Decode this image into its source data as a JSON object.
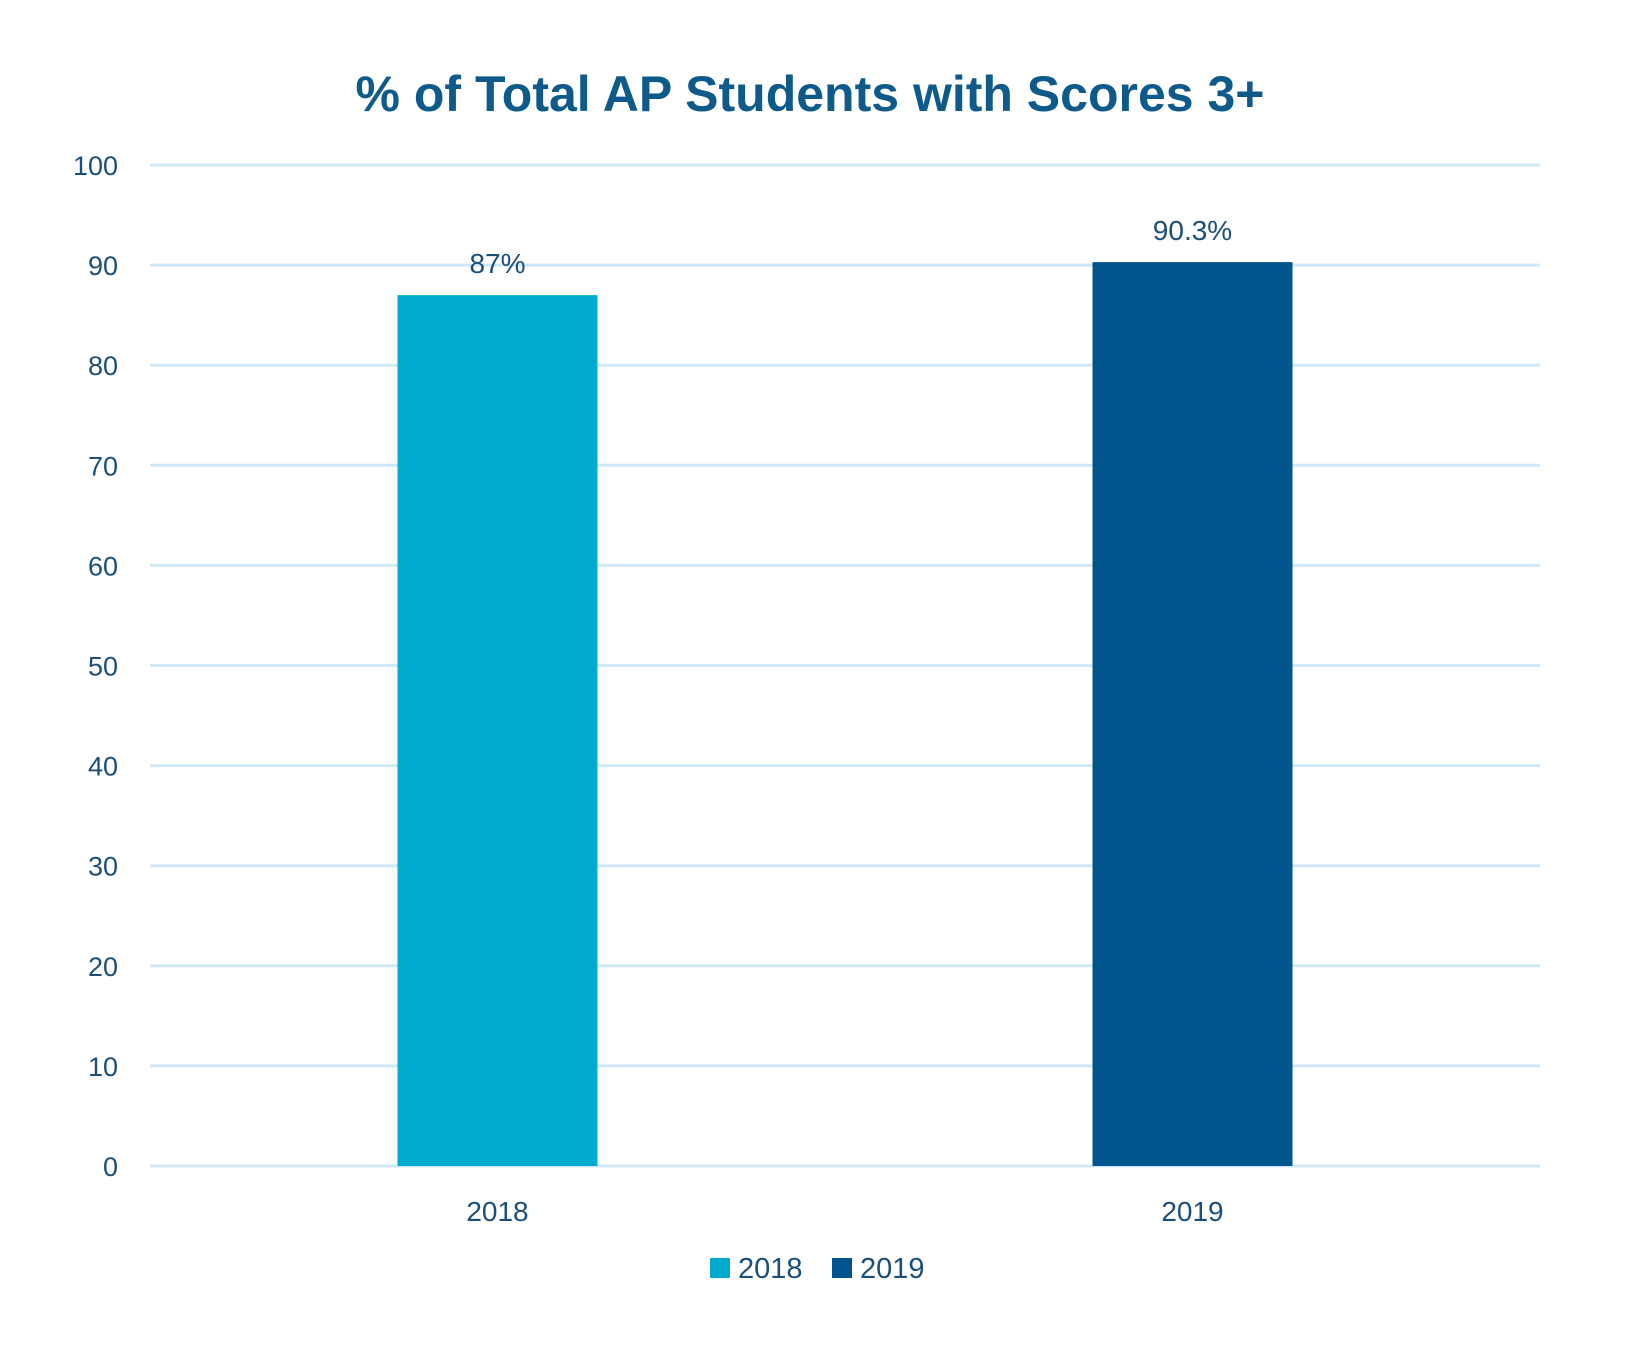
{
  "chart_data": {
    "type": "bar",
    "title": "% of Total AP Students with Scores 3+",
    "xlabel": "",
    "ylabel": "",
    "categories": [
      "2018",
      "2019"
    ],
    "values": [
      87,
      90.3
    ],
    "data_labels": [
      "87%",
      "90.3%"
    ],
    "bar_colors": [
      "#00a9cf",
      "#00568c"
    ],
    "ylim": [
      0,
      100
    ],
    "yticks": [
      "0",
      "10",
      "20",
      "30",
      "40",
      "50",
      "60",
      "70",
      "80",
      "90",
      "100"
    ],
    "grid": true,
    "legend_position": "bottom",
    "legend": [
      {
        "label": "2018",
        "color": "#00a9cf"
      },
      {
        "label": "2019",
        "color": "#00568c"
      }
    ]
  }
}
